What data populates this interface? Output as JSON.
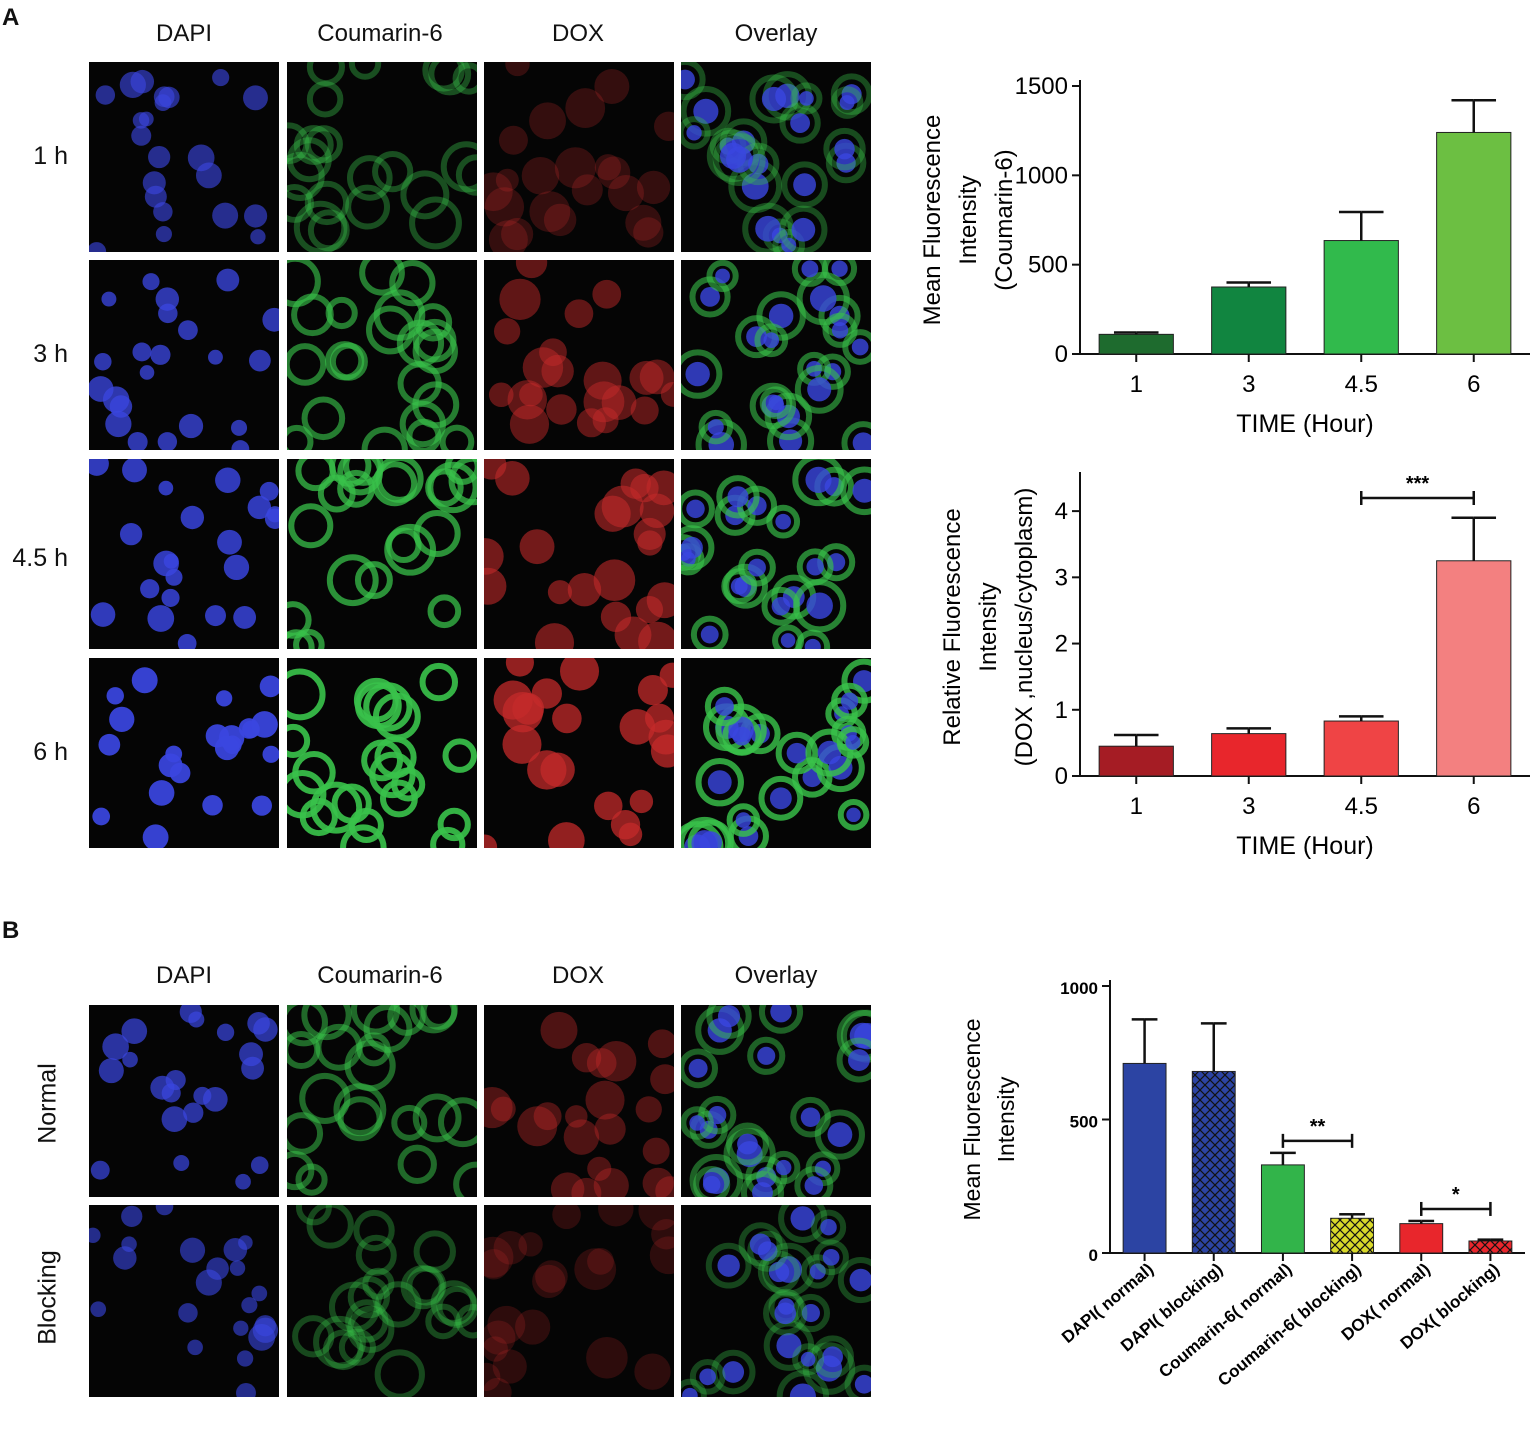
{
  "figure": {
    "panel_a_label": "A",
    "panel_b_label": "B",
    "panel_a_columns": [
      "DAPI",
      "Coumarin-6",
      "DOX",
      "Overlay"
    ],
    "panel_a_rows": [
      "1 h",
      "3 h",
      "4.5 h",
      "6 h"
    ],
    "panel_b_columns": [
      "DAPI",
      "Coumarin-6",
      "DOX",
      "Overlay"
    ],
    "panel_b_rows": [
      "Normal",
      "Blocking"
    ]
  },
  "colors": {
    "dapi": "#3a46e0",
    "coumarin": "#39c24a",
    "dox": "#c42a2a"
  },
  "chart_data": [
    {
      "type": "bar",
      "categories": [
        "1",
        "3",
        "4.5",
        "6"
      ],
      "values": [
        110,
        375,
        635,
        1240
      ],
      "errors": [
        10,
        25,
        160,
        180
      ],
      "bar_colors": [
        "#1e6b2e",
        "#118540",
        "#31ba4c",
        "#6cbf42"
      ],
      "title": "",
      "xlabel": "TIME (Hour)",
      "ylabel_lines": [
        "Mean Fluorescence",
        "Intensity",
        "(Coumarin-6)"
      ],
      "ylim": [
        0,
        1500
      ],
      "yticks": [
        "0",
        "500",
        "1000",
        "1500"
      ],
      "significance": []
    },
    {
      "type": "bar",
      "categories": [
        "1",
        "3",
        "4.5",
        "6"
      ],
      "values": [
        0.45,
        0.64,
        0.83,
        3.25
      ],
      "errors": [
        0.17,
        0.08,
        0.07,
        0.65
      ],
      "bar_colors": [
        "#a51c24",
        "#e8262c",
        "#ef4445",
        "#f38080"
      ],
      "title": "",
      "xlabel": "TIME (Hour)",
      "ylabel_lines": [
        "Relative Fluorescence",
        "Intensity",
        "(DOX ,nucleus/cytoplasm)"
      ],
      "ylim": [
        0,
        4.5
      ],
      "yticks": [
        "0",
        "1",
        "2",
        "3",
        "4"
      ],
      "significance": [
        {
          "from": 2,
          "to": 3,
          "label": "***"
        }
      ]
    },
    {
      "type": "bar",
      "categories": [
        "DAPI( normal)",
        "DAPI( blocking)",
        "Coumarin-6( normal)",
        "Coumarin-6( blocking)",
        "DOX( normal)",
        "DOX( blocking)"
      ],
      "values": [
        710,
        680,
        330,
        130,
        110,
        45
      ],
      "errors": [
        165,
        180,
        45,
        15,
        10,
        5
      ],
      "bar_colors": [
        "#2c44a3",
        "#2c44a3",
        "#32b44a",
        "#d9d92a",
        "#e8262c",
        "#e8262c"
      ],
      "hatched": [
        false,
        true,
        false,
        true,
        false,
        true
      ],
      "title": "",
      "xlabel": "",
      "ylabel_lines": [
        "Mean Fluorescence",
        "Intensity"
      ],
      "ylim": [
        0,
        1000
      ],
      "yticks": [
        "0",
        "500",
        "1000"
      ],
      "significance": [
        {
          "from": 2,
          "to": 3,
          "label": "**"
        },
        {
          "from": 4,
          "to": 5,
          "label": "*"
        }
      ]
    }
  ]
}
